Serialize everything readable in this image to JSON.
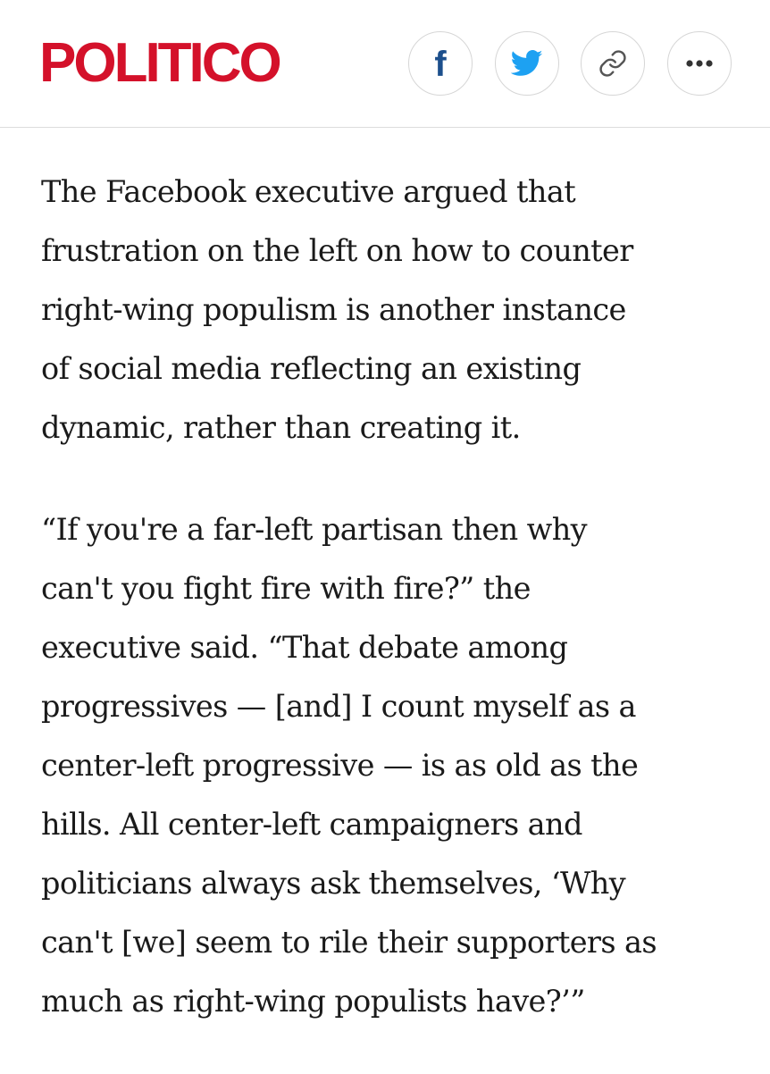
{
  "header": {
    "logo_text": "POLITICO",
    "brand_color": "#d4112a",
    "share_buttons": [
      {
        "icon": "facebook-icon",
        "color": "#1c4f8c"
      },
      {
        "icon": "twitter-icon",
        "color": "#1da1f2"
      },
      {
        "icon": "link-icon",
        "color": "#555555"
      },
      {
        "icon": "more-icon",
        "color": "#333333"
      }
    ]
  },
  "article": {
    "paragraphs": [
      "The Facebook executive argued that\nfrustration on the left on how to counter\nright-wing populism is another instance\nof social media reflecting an existing\ndynamic, rather than creating it.",
      "“If you're a far-left partisan then why\ncan't you fight fire with fire?” the\nexecutive said. “That debate among\nprogressives — [and] I count myself as a\ncenter-left progressive — is as old as the\nhills. All center-left campaigners and\npoliticians always ask themselves, ‘Why\ncan't [we] seem to rile their supporters as\nmuch as right-wing populists have?’”"
    ]
  }
}
